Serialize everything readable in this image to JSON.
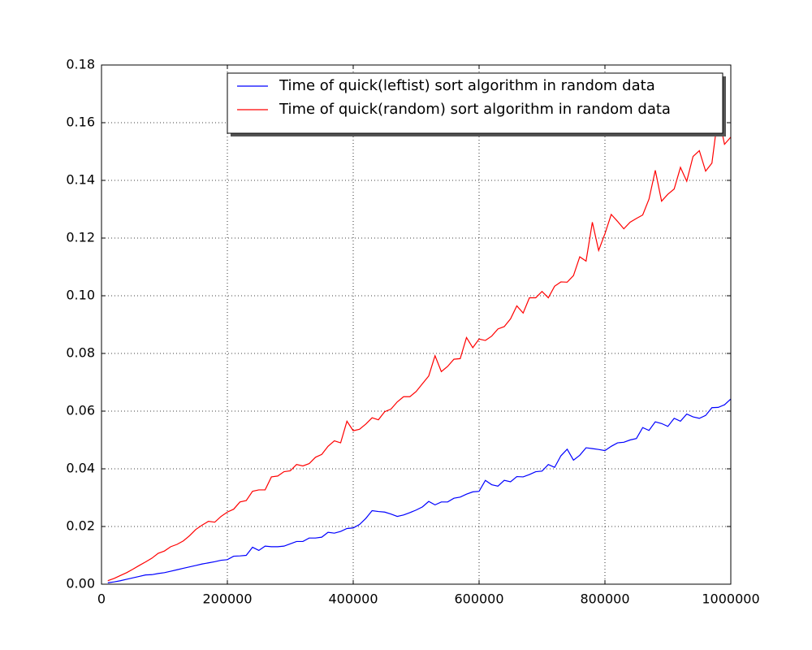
{
  "chart_data": {
    "type": "line",
    "x": [
      10000,
      20000,
      30000,
      40000,
      50000,
      60000,
      70000,
      80000,
      90000,
      100000,
      110000,
      120000,
      130000,
      140000,
      150000,
      160000,
      170000,
      180000,
      190000,
      200000,
      210000,
      220000,
      230000,
      240000,
      250000,
      260000,
      270000,
      280000,
      290000,
      300000,
      310000,
      320000,
      330000,
      340000,
      350000,
      360000,
      370000,
      380000,
      390000,
      400000,
      410000,
      420000,
      430000,
      440000,
      450000,
      460000,
      470000,
      480000,
      490000,
      500000,
      510000,
      520000,
      530000,
      540000,
      550000,
      560000,
      570000,
      580000,
      590000,
      600000,
      610000,
      620000,
      630000,
      640000,
      650000,
      660000,
      670000,
      680000,
      690000,
      700000,
      710000,
      720000,
      730000,
      740000,
      750000,
      760000,
      770000,
      780000,
      790000,
      800000,
      810000,
      820000,
      830000,
      840000,
      850000,
      860000,
      870000,
      880000,
      890000,
      900000,
      910000,
      920000,
      930000,
      940000,
      950000,
      960000,
      970000,
      980000,
      990000,
      1000000
    ],
    "series": [
      {
        "name": "Time of quick(leftist) sort algorithm in random data",
        "color": "#0000ff",
        "values": [
          0.0005,
          0.0008,
          0.0012,
          0.0017,
          0.0022,
          0.0027,
          0.0032,
          0.0033,
          0.0037,
          0.004,
          0.0045,
          0.005,
          0.0055,
          0.006,
          0.0065,
          0.007,
          0.0074,
          0.0078,
          0.0083,
          0.0085,
          0.0097,
          0.0098,
          0.01,
          0.0128,
          0.0117,
          0.0132,
          0.013,
          0.013,
          0.0132,
          0.014,
          0.0148,
          0.0148,
          0.016,
          0.016,
          0.0163,
          0.018,
          0.0177,
          0.0183,
          0.0193,
          0.0195,
          0.0207,
          0.0228,
          0.0255,
          0.0252,
          0.025,
          0.0243,
          0.0235,
          0.024,
          0.0248,
          0.0257,
          0.0268,
          0.0287,
          0.0275,
          0.0285,
          0.0285,
          0.0298,
          0.0302,
          0.0312,
          0.032,
          0.0322,
          0.036,
          0.0345,
          0.034,
          0.036,
          0.0355,
          0.0373,
          0.0372,
          0.038,
          0.039,
          0.0392,
          0.0415,
          0.0405,
          0.0445,
          0.0468,
          0.043,
          0.0447,
          0.0473,
          0.047,
          0.0467,
          0.0463,
          0.0478,
          0.049,
          0.0492,
          0.05,
          0.0505,
          0.0543,
          0.0533,
          0.0563,
          0.0557,
          0.0547,
          0.0575,
          0.0565,
          0.059,
          0.058,
          0.0575,
          0.0585,
          0.0612,
          0.0613,
          0.0622,
          0.0642
        ]
      },
      {
        "name": "Time of quick(random) sort algorithm in random data",
        "color": "#ff0000",
        "values": [
          0.0012,
          0.002,
          0.003,
          0.004,
          0.0052,
          0.0065,
          0.0077,
          0.009,
          0.0107,
          0.0115,
          0.013,
          0.0138,
          0.015,
          0.0168,
          0.019,
          0.0205,
          0.0218,
          0.0215,
          0.0235,
          0.025,
          0.026,
          0.0285,
          0.029,
          0.0322,
          0.0327,
          0.0327,
          0.0372,
          0.0375,
          0.039,
          0.0393,
          0.0415,
          0.041,
          0.0418,
          0.044,
          0.045,
          0.0478,
          0.0497,
          0.049,
          0.0565,
          0.0532,
          0.0537,
          0.0555,
          0.0577,
          0.057,
          0.0598,
          0.0607,
          0.0632,
          0.065,
          0.065,
          0.0668,
          0.0695,
          0.0722,
          0.0792,
          0.0737,
          0.0755,
          0.078,
          0.0782,
          0.0855,
          0.082,
          0.085,
          0.0845,
          0.086,
          0.0885,
          0.0893,
          0.092,
          0.0965,
          0.094,
          0.0993,
          0.0993,
          0.1015,
          0.0993,
          0.1033,
          0.1048,
          0.1047,
          0.107,
          0.1135,
          0.112,
          0.1255,
          0.1157,
          0.1215,
          0.1282,
          0.1258,
          0.1232,
          0.1255,
          0.1268,
          0.128,
          0.1335,
          0.1435,
          0.1328,
          0.1352,
          0.137,
          0.1445,
          0.1397,
          0.1483,
          0.1503,
          0.1432,
          0.146,
          0.163,
          0.1525,
          0.155
        ]
      }
    ],
    "xlim": [
      0,
      1000000
    ],
    "xticks": [
      0,
      200000,
      400000,
      600000,
      800000,
      1000000
    ],
    "ylim": [
      0,
      0.18
    ],
    "yticks": [
      {
        "value": 0,
        "label": "0.00"
      },
      {
        "value": 0.02,
        "label": "0.02"
      },
      {
        "value": 0.04,
        "label": "0.04"
      },
      {
        "value": 0.06,
        "label": "0.06"
      },
      {
        "value": 0.08,
        "label": "0.08"
      },
      {
        "value": 0.1,
        "label": "0.10"
      },
      {
        "value": 0.12,
        "label": "0.12"
      },
      {
        "value": 0.14,
        "label": "0.14"
      },
      {
        "value": 0.16,
        "label": "0.16"
      },
      {
        "value": 0.18,
        "label": "0.18"
      }
    ],
    "grid": true,
    "legend": "upper right"
  }
}
